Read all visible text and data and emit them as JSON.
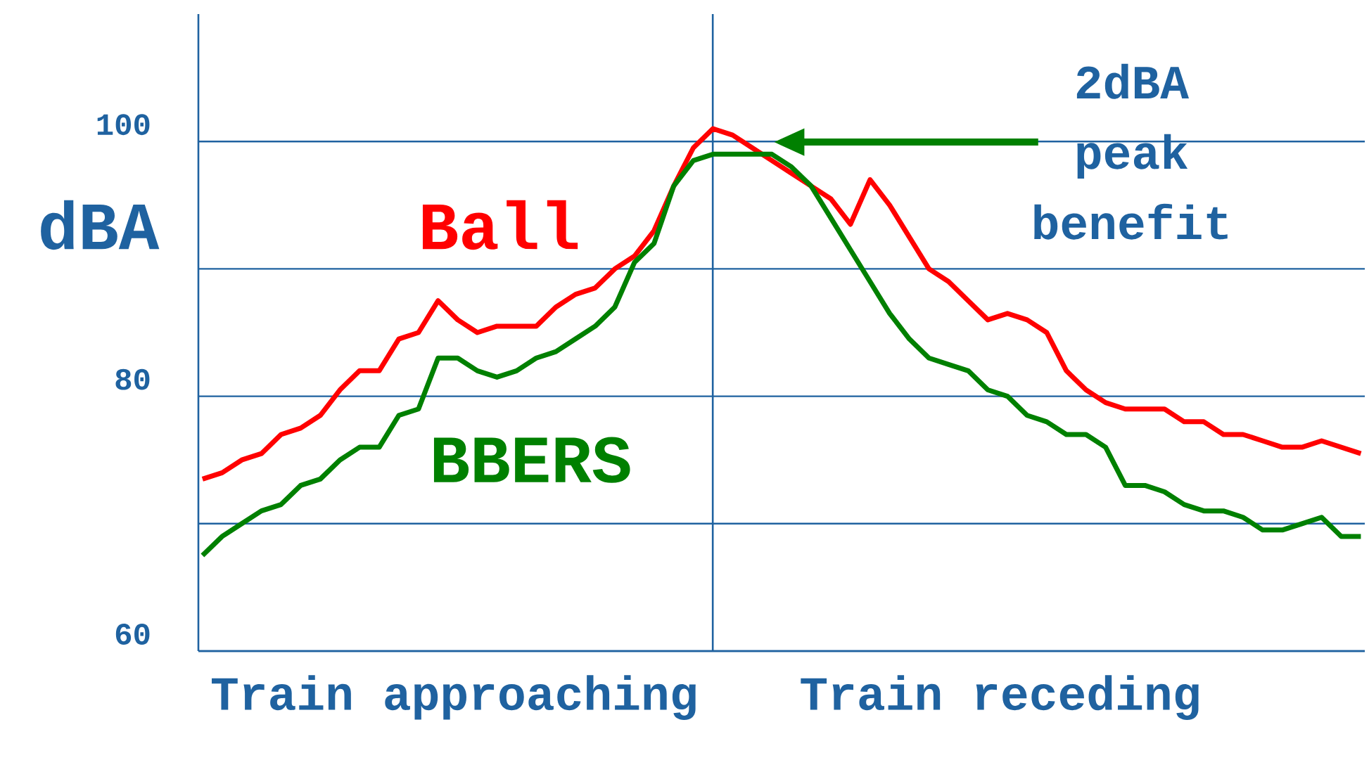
{
  "chart_data": {
    "type": "line",
    "ylabel": "dBA",
    "categories": [
      null,
      null,
      null,
      null,
      null,
      null,
      null,
      null,
      null,
      null,
      null,
      null,
      null,
      null,
      null,
      null,
      null,
      null,
      null,
      null,
      null,
      null,
      null,
      null,
      null,
      null,
      null,
      null,
      null,
      null,
      null,
      null,
      null,
      null,
      null,
      null,
      null,
      null,
      null,
      null,
      null,
      null,
      null,
      null,
      null,
      null,
      null,
      null,
      null,
      null,
      null,
      null,
      null,
      null,
      null,
      null,
      null,
      null,
      null,
      null
    ],
    "series": [
      {
        "name": "Ball",
        "color": "#ff0000",
        "values": [
          73.5,
          74,
          75,
          75.5,
          77,
          77.5,
          78.5,
          80.5,
          82,
          82,
          84.5,
          85,
          87.5,
          86,
          85,
          85.5,
          85.5,
          85.5,
          87,
          88,
          88.5,
          90,
          91,
          93,
          96.5,
          99.5,
          101,
          100.5,
          99.5,
          98.5,
          97.5,
          96.5,
          95.5,
          93.5,
          97,
          95,
          92.5,
          90,
          89,
          87.5,
          86,
          86.5,
          86,
          85,
          82,
          80.5,
          79.5,
          79,
          79,
          79,
          78,
          78,
          77,
          77,
          76.5,
          76,
          76,
          76.5,
          76,
          75.5
        ]
      },
      {
        "name": "BBERS",
        "color": "#008000",
        "values": [
          67.5,
          69,
          70,
          71,
          71.5,
          73,
          73.5,
          75,
          76,
          76,
          78.5,
          79,
          83,
          83,
          82,
          81.5,
          82,
          83,
          83.5,
          84.5,
          85.5,
          87,
          90.5,
          92,
          96.5,
          98.5,
          99,
          99,
          99,
          99,
          98,
          96.5,
          94,
          91.5,
          89,
          86.5,
          84.5,
          83,
          82.5,
          82,
          80.5,
          80,
          78.5,
          78,
          77,
          77,
          76,
          73,
          73,
          72.5,
          71.5,
          71,
          71,
          70.5,
          69.5,
          69.5,
          70,
          70.5,
          69,
          69
        ]
      }
    ],
    "ylim": [
      60,
      110
    ],
    "yticks": [
      60,
      {
        "value": 70,
        "label": null
      },
      80,
      {
        "value": 90,
        "label": null
      },
      100
    ],
    "grid": "y",
    "tick_labels": "y",
    "marker": "none",
    "line_style": "solid",
    "annotations": [
      "2dBA peak benefit",
      "Train approaching",
      "Train receding"
    ]
  }
}
